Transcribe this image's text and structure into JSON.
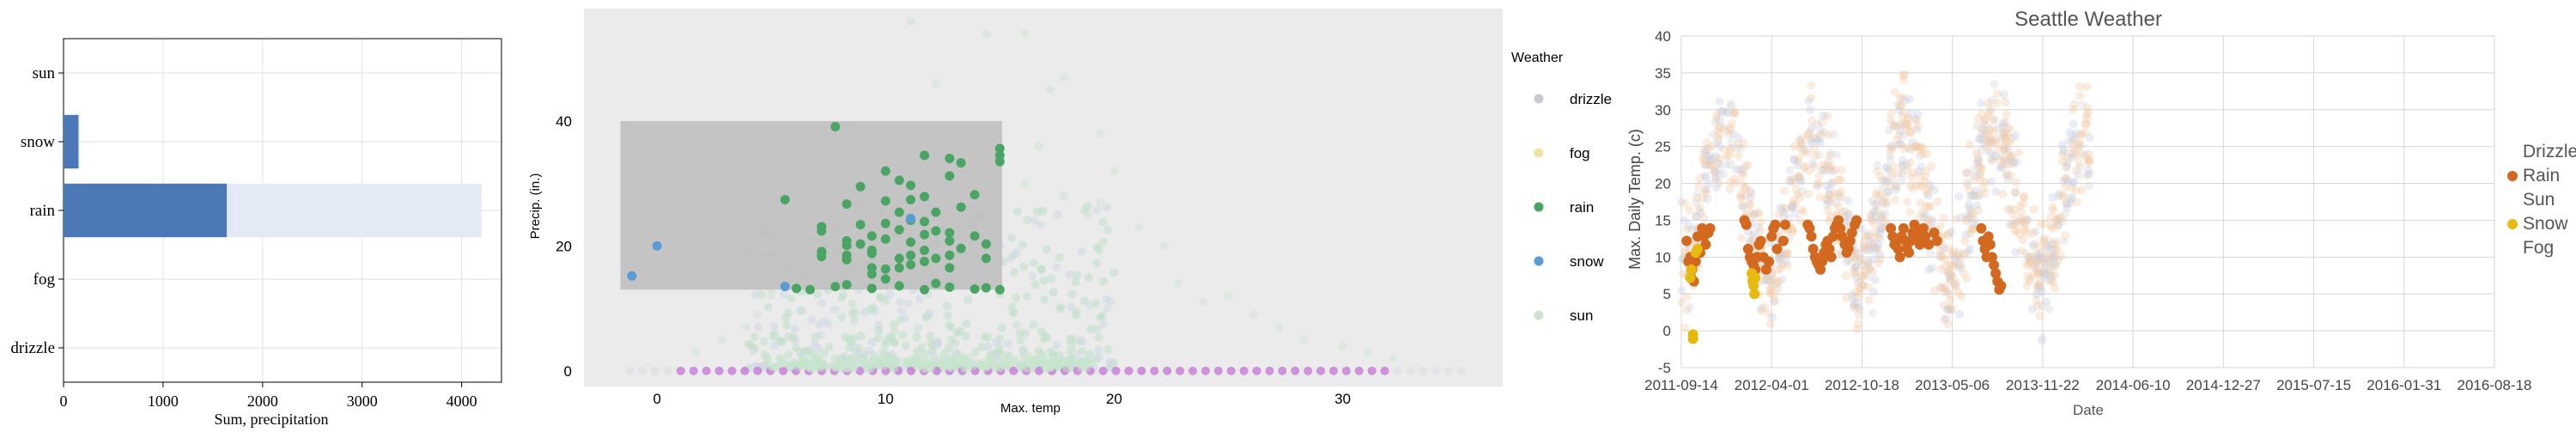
{
  "chart_data": [
    {
      "type": "bar",
      "orientation": "horizontal",
      "categories": [
        "sun",
        "snow",
        "rain",
        "fog",
        "drizzle"
      ],
      "values": [
        0,
        150,
        1640,
        0,
        0
      ],
      "background_values": [
        0,
        160,
        4200,
        0,
        0
      ],
      "xlabel": "Sum, precipitation",
      "xticks": [
        "0",
        "1000",
        "2000",
        "3000",
        "4000"
      ],
      "xlim": [
        0,
        4400
      ],
      "colors": {
        "bar": "#4c78b8",
        "background_bar": "#e3eaf5"
      },
      "grid": true
    },
    {
      "type": "scatter",
      "xlabel": "Max. temp",
      "ylabel": "Precip. (in.)",
      "xticks": [
        "0",
        "10",
        "20",
        "30"
      ],
      "yticks": [
        "0",
        "20",
        "40"
      ],
      "xlim": [
        -3.2,
        37
      ],
      "ylim": [
        -2.5,
        58
      ],
      "legend_title": "Weather",
      "legend": [
        {
          "name": "drizzle",
          "color": "#c9c9d1"
        },
        {
          "name": "fog",
          "color": "#efe3a6"
        },
        {
          "name": "rain",
          "color": "#4aa564"
        },
        {
          "name": "snow",
          "color": "#5b9bd3"
        },
        {
          "name": "sun",
          "color": "#cfe1cf"
        }
      ],
      "selection": {
        "x0": -1.6,
        "x1": 15.1,
        "y0": 13,
        "y1": 40,
        "color": "#bdbdbd"
      },
      "highlighted_points": {
        "rain": [
          [
            5.6,
            27.4
          ],
          [
            7.2,
            23.1
          ],
          [
            7.2,
            22.4
          ],
          [
            7.2,
            19.1
          ],
          [
            7.2,
            18.8
          ],
          [
            7.2,
            18.3
          ],
          [
            7.8,
            39.1
          ],
          [
            8.3,
            26.7
          ],
          [
            8.3,
            20.8
          ],
          [
            8.3,
            20.1
          ],
          [
            8.3,
            18.5
          ],
          [
            8.3,
            17.8
          ],
          [
            8.9,
            29.5
          ],
          [
            8.9,
            23.4
          ],
          [
            8.9,
            20.3
          ],
          [
            9.4,
            21.6
          ],
          [
            9.4,
            19.3
          ],
          [
            9.4,
            18.8
          ],
          [
            9.4,
            16.5
          ],
          [
            9.4,
            15.5
          ],
          [
            10.0,
            32.0
          ],
          [
            10.0,
            27.2
          ],
          [
            10.0,
            23.6
          ],
          [
            10.0,
            21.1
          ],
          [
            10.0,
            16.3
          ],
          [
            10.0,
            14.7
          ],
          [
            10.6,
            30.5
          ],
          [
            10.6,
            25.4
          ],
          [
            10.6,
            22.6
          ],
          [
            10.6,
            18.0
          ],
          [
            10.6,
            16.5
          ],
          [
            11.1,
            29.7
          ],
          [
            11.1,
            27.4
          ],
          [
            11.1,
            24.1
          ],
          [
            11.1,
            20.6
          ],
          [
            11.1,
            18.5
          ],
          [
            11.1,
            17.0
          ],
          [
            11.7,
            34.5
          ],
          [
            11.7,
            27.9
          ],
          [
            11.7,
            23.9
          ],
          [
            11.7,
            21.8
          ],
          [
            11.7,
            19.3
          ],
          [
            11.7,
            17.5
          ],
          [
            12.2,
            25.4
          ],
          [
            12.2,
            22.4
          ],
          [
            12.2,
            18.0
          ],
          [
            12.2,
            14.0
          ],
          [
            12.8,
            34.0
          ],
          [
            12.8,
            31.2
          ],
          [
            12.8,
            22.1
          ],
          [
            12.8,
            20.8
          ],
          [
            12.8,
            18.5
          ],
          [
            12.8,
            16.5
          ],
          [
            13.3,
            33.3
          ],
          [
            13.3,
            26.2
          ],
          [
            13.3,
            19.6
          ],
          [
            13.9,
            28.2
          ],
          [
            13.9,
            21.6
          ],
          [
            14.4,
            20.3
          ],
          [
            14.4,
            18.0
          ],
          [
            15.0,
            35.6
          ],
          [
            15.0,
            34.5
          ],
          [
            15.0,
            33.5
          ],
          [
            15.0,
            13.0
          ],
          [
            6.1,
            13.2
          ],
          [
            6.7,
            13.0
          ],
          [
            7.8,
            13.5
          ],
          [
            8.3,
            13.8
          ],
          [
            9.4,
            13.2
          ],
          [
            10.6,
            13.6
          ],
          [
            11.7,
            13.0
          ],
          [
            12.8,
            13.4
          ],
          [
            13.9,
            13.1
          ],
          [
            14.4,
            13.3
          ]
        ],
        "snow": [
          [
            -1.1,
            15.2
          ],
          [
            0.0,
            20.0
          ],
          [
            5.6,
            13.5
          ],
          [
            11.1,
            24.4
          ]
        ]
      },
      "faded_precip_max": [
        {
          "x": 8.3,
          "y": 18
        },
        {
          "x": 11.1,
          "y": 56
        },
        {
          "x": 14.4,
          "y": 54
        },
        {
          "x": 16.1,
          "y": 54
        },
        {
          "x": 17.8,
          "y": 47
        },
        {
          "x": 17.2,
          "y": 45
        },
        {
          "x": 12.2,
          "y": 46
        },
        {
          "x": 19.4,
          "y": 38
        },
        {
          "x": 16.7,
          "y": 36
        },
        {
          "x": 20.0,
          "y": 32
        },
        {
          "x": 19.4,
          "y": 27
        },
        {
          "x": 21.1,
          "y": 23
        },
        {
          "x": 22.2,
          "y": 20
        },
        {
          "x": 22.8,
          "y": 14
        },
        {
          "x": 18.9,
          "y": 25
        },
        {
          "x": 17.8,
          "y": 28
        },
        {
          "x": 16.1,
          "y": 30
        },
        {
          "x": 25.0,
          "y": 12
        },
        {
          "x": 26.1,
          "y": 9
        },
        {
          "x": 27.2,
          "y": 7
        },
        {
          "x": 23.9,
          "y": 11
        },
        {
          "x": 2.8,
          "y": 5
        },
        {
          "x": 3.9,
          "y": 7
        },
        {
          "x": 4.4,
          "y": 9
        },
        {
          "x": 1.7,
          "y": 3
        },
        {
          "x": 5.0,
          "y": 12
        },
        {
          "x": 28.3,
          "y": 5
        },
        {
          "x": 30.0,
          "y": 4
        },
        {
          "x": 31.1,
          "y": 3
        },
        {
          "x": 32.2,
          "y": 2
        },
        {
          "x": 6.1,
          "y": 14
        },
        {
          "x": 7.2,
          "y": 15
        }
      ]
    },
    {
      "type": "scatter",
      "title": "Seattle Weather",
      "xlabel": "Date",
      "ylabel": "Max. Daily Temp. (c)",
      "xticks": [
        "2011-09-14",
        "2012-04-01",
        "2012-10-18",
        "2013-05-06",
        "2013-11-22",
        "2014-06-10",
        "2014-12-27",
        "2015-07-15",
        "2016-01-31",
        "2016-08-18"
      ],
      "yticks": [
        "-5",
        "0",
        "5",
        "10",
        "15",
        "20",
        "25",
        "30",
        "35",
        "40"
      ],
      "ylim": [
        -5,
        40
      ],
      "legend": [
        {
          "name": "Drizzle",
          "color": "#c8cddc"
        },
        {
          "name": "Rain",
          "color": "#d2691e"
        },
        {
          "name": "Sun",
          "color": "#f2d3b6"
        },
        {
          "name": "Snow",
          "color": "#e8b90f"
        },
        {
          "name": "Fog",
          "color": "#d8d8d8"
        }
      ],
      "highlighted_points": {
        "rain": [
          [
            0.06,
            12.2
          ],
          [
            0.08,
            9.4
          ],
          [
            0.1,
            10.0
          ],
          [
            0.11,
            7.2
          ],
          [
            0.12,
            8.3
          ],
          [
            0.14,
            6.7
          ],
          [
            0.16,
            9.4
          ],
          [
            0.18,
            12.8
          ],
          [
            0.21,
            10.6
          ],
          [
            0.23,
            13.9
          ],
          [
            0.25,
            12.8
          ],
          [
            0.27,
            11.7
          ],
          [
            0.3,
            13.3
          ],
          [
            0.32,
            13.9
          ],
          [
            0.7,
            15.0
          ],
          [
            0.72,
            14.4
          ],
          [
            0.74,
            11.1
          ],
          [
            0.76,
            10.0
          ],
          [
            0.78,
            9.4
          ],
          [
            0.8,
            8.9
          ],
          [
            0.82,
            8.3
          ],
          [
            0.84,
            10.0
          ],
          [
            0.86,
            11.7
          ],
          [
            0.88,
            12.2
          ],
          [
            0.91,
            10.0
          ],
          [
            0.94,
            8.3
          ],
          [
            0.97,
            9.4
          ],
          [
            1.0,
            12.8
          ],
          [
            1.02,
            13.9
          ],
          [
            1.04,
            14.4
          ],
          [
            1.06,
            11.1
          ],
          [
            1.13,
            12.2
          ],
          [
            1.15,
            14.4
          ],
          [
            1.4,
            14.4
          ],
          [
            1.42,
            13.9
          ],
          [
            1.44,
            12.8
          ],
          [
            1.46,
            11.1
          ],
          [
            1.48,
            10.0
          ],
          [
            1.5,
            9.4
          ],
          [
            1.52,
            8.9
          ],
          [
            1.54,
            8.3
          ],
          [
            1.56,
            9.4
          ],
          [
            1.58,
            10.6
          ],
          [
            1.6,
            11.7
          ],
          [
            1.62,
            12.2
          ],
          [
            1.64,
            11.1
          ],
          [
            1.66,
            10.0
          ],
          [
            1.68,
            12.8
          ],
          [
            1.7,
            13.9
          ],
          [
            1.72,
            14.4
          ],
          [
            1.74,
            15.0
          ],
          [
            1.76,
            13.9
          ],
          [
            1.78,
            12.8
          ],
          [
            1.81,
            11.7
          ],
          [
            1.83,
            10.6
          ],
          [
            1.85,
            11.1
          ],
          [
            1.87,
            12.2
          ],
          [
            1.89,
            13.3
          ],
          [
            1.92,
            14.4
          ],
          [
            1.94,
            15.0
          ],
          [
            2.32,
            13.9
          ],
          [
            2.34,
            12.8
          ],
          [
            2.36,
            11.7
          ],
          [
            2.38,
            12.2
          ],
          [
            2.4,
            11.1
          ],
          [
            2.42,
            10.0
          ],
          [
            2.44,
            12.8
          ],
          [
            2.46,
            13.9
          ],
          [
            2.48,
            12.2
          ],
          [
            2.5,
            11.1
          ],
          [
            2.52,
            10.6
          ],
          [
            2.54,
            12.2
          ],
          [
            2.56,
            13.3
          ],
          [
            2.58,
            14.4
          ],
          [
            2.6,
            13.9
          ],
          [
            2.62,
            12.8
          ],
          [
            2.64,
            11.7
          ],
          [
            2.66,
            12.2
          ],
          [
            2.68,
            13.9
          ],
          [
            2.7,
            12.8
          ],
          [
            2.74,
            11.7
          ],
          [
            2.8,
            13.3
          ],
          [
            2.83,
            12.2
          ],
          [
            3.32,
            13.9
          ],
          [
            3.34,
            12.2
          ],
          [
            3.36,
            11.1
          ],
          [
            3.38,
            10.0
          ],
          [
            3.4,
            12.8
          ],
          [
            3.42,
            11.7
          ],
          [
            3.44,
            10.0
          ],
          [
            3.46,
            8.9
          ],
          [
            3.48,
            7.8
          ],
          [
            3.5,
            6.7
          ],
          [
            3.52,
            5.6
          ],
          [
            3.54,
            6.1
          ]
        ],
        "snow": [
          [
            0.1,
            7.2
          ],
          [
            0.11,
            8.3
          ],
          [
            0.13,
            -0.5
          ],
          [
            0.13,
            -1.1
          ],
          [
            0.16,
            10.6
          ],
          [
            0.18,
            11.1
          ],
          [
            0.78,
            7.8
          ],
          [
            0.79,
            6.7
          ],
          [
            0.8,
            6.1
          ],
          [
            0.81,
            5.0
          ],
          [
            0.82,
            7.2
          ]
        ]
      }
    }
  ]
}
